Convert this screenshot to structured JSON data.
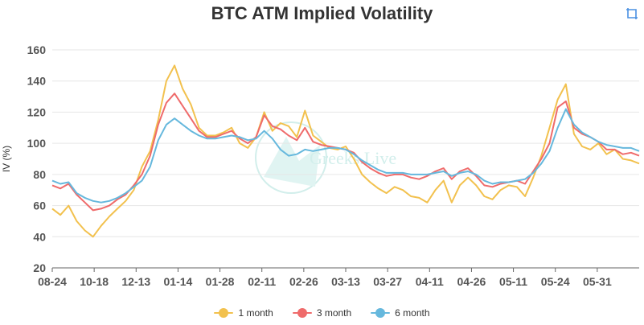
{
  "header": {
    "title": "BTC ATM Implied Volatility"
  },
  "toolbox": {
    "restore_icon": "restore-icon"
  },
  "watermark": {
    "text": "Greeks.Live",
    "color": "#7fd1c8"
  },
  "chart_data": {
    "type": "line",
    "title": "BTC ATM Implied Volatility",
    "ylabel": "IV (%)",
    "xlabel": "",
    "ylim": [
      20,
      160
    ],
    "yticks": [
      20,
      40,
      60,
      80,
      100,
      120,
      140,
      160
    ],
    "x_tick_labels": [
      "08-24",
      "10-18",
      "12-13",
      "01-14",
      "01-28",
      "02-11",
      "02-26",
      "03-13",
      "03-27",
      "04-11",
      "04-26",
      "05-11",
      "05-24",
      "05-31"
    ],
    "grid": true,
    "legend_position": "bottom",
    "series": [
      {
        "name": "1 month",
        "color": "#f2c14e",
        "values": [
          58,
          54,
          60,
          50,
          44,
          40,
          47,
          53,
          58,
          63,
          70,
          85,
          95,
          115,
          140,
          150,
          135,
          125,
          110,
          105,
          105,
          107,
          110,
          100,
          97,
          104,
          120,
          108,
          113,
          111,
          104,
          121,
          105,
          101,
          97,
          96,
          98,
          90,
          80,
          75,
          71,
          68,
          72,
          70,
          66,
          65,
          62,
          70,
          76,
          62,
          73,
          78,
          73,
          66,
          64,
          70,
          73,
          72,
          66,
          78,
          92,
          110,
          128,
          138,
          106,
          98,
          96,
          100,
          93,
          96,
          90,
          89,
          87
        ]
      },
      {
        "name": "3 month",
        "color": "#ef6b6b",
        "values": [
          73,
          71,
          74,
          67,
          62,
          57,
          58,
          60,
          64,
          67,
          73,
          80,
          92,
          112,
          126,
          132,
          124,
          116,
          108,
          104,
          104,
          106,
          108,
          103,
          100,
          104,
          118,
          111,
          109,
          105,
          102,
          110,
          101,
          99,
          98,
          97,
          96,
          94,
          88,
          84,
          81,
          79,
          80,
          80,
          78,
          77,
          79,
          82,
          84,
          77,
          82,
          84,
          79,
          73,
          72,
          74,
          75,
          76,
          74,
          82,
          90,
          100,
          123,
          127,
          110,
          106,
          104,
          101,
          96,
          96,
          93,
          94,
          92
        ]
      },
      {
        "name": "6 month",
        "color": "#66b8dd",
        "values": [
          76,
          74,
          75,
          68,
          65,
          63,
          62,
          63,
          65,
          68,
          72,
          76,
          85,
          102,
          112,
          116,
          112,
          108,
          105,
          103,
          103,
          104,
          105,
          104,
          102,
          103,
          108,
          103,
          96,
          92,
          93,
          96,
          95,
          96,
          97,
          97,
          96,
          93,
          89,
          86,
          83,
          81,
          81,
          81,
          80,
          80,
          80,
          81,
          82,
          79,
          81,
          82,
          80,
          76,
          74,
          75,
          75,
          76,
          77,
          81,
          87,
          95,
          110,
          122,
          112,
          107,
          104,
          101,
          99,
          98,
          97,
          97,
          95
        ]
      }
    ]
  }
}
